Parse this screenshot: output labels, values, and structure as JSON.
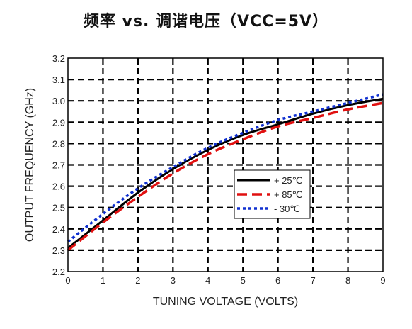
{
  "chart_data": {
    "type": "line",
    "title": "频率 vs. 调谐电压（VCC=5V）",
    "xlabel": "TUNING VOLTAGE (VOLTS)",
    "ylabel": "OUTPUT FREQUENCY (GHz)",
    "xlim": [
      0,
      9
    ],
    "ylim": [
      2.2,
      3.2
    ],
    "x_ticks": [
      "0",
      "1",
      "2",
      "3",
      "4",
      "5",
      "6",
      "7",
      "8",
      "9"
    ],
    "y_ticks": [
      "2.2",
      "2.3",
      "2.4",
      "2.5",
      "2.6",
      "2.7",
      "2.8",
      "2.9",
      "3.0",
      "3.1",
      "3.2"
    ],
    "grid": true,
    "legend_position": "center-right",
    "x": [
      0,
      1,
      2,
      3,
      4,
      5,
      6,
      7,
      8,
      9
    ],
    "series": [
      {
        "name": "+ 25℃",
        "color": "#000000",
        "style": "solid",
        "values": [
          2.31,
          2.44,
          2.57,
          2.68,
          2.77,
          2.84,
          2.89,
          2.94,
          2.98,
          3.01
        ]
      },
      {
        "name": "+ 85℃",
        "color": "#e01010",
        "style": "dashed",
        "values": [
          2.3,
          2.43,
          2.55,
          2.66,
          2.75,
          2.82,
          2.88,
          2.92,
          2.96,
          2.99
        ]
      },
      {
        "name": "- 30℃",
        "color": "#1030d0",
        "style": "dotted",
        "values": [
          2.34,
          2.47,
          2.59,
          2.69,
          2.78,
          2.85,
          2.91,
          2.95,
          2.99,
          3.03
        ]
      }
    ]
  }
}
